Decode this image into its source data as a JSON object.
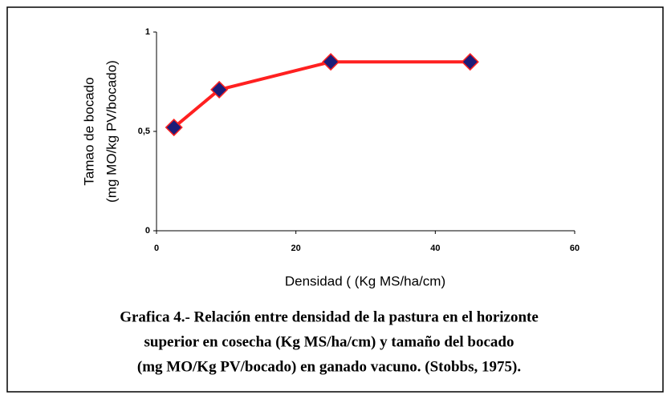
{
  "chart_data": {
    "type": "line",
    "xlabel": "Densidad ( (Kg MS/ha/cm)",
    "ylabel": [
      "Tamao de bocado",
      "(mg MO/kg PV/bocado)"
    ],
    "caption": [
      "Grafica 4.- Relación entre densidad de la pastura en el horizonte",
      "superior  en cosecha (Kg MS/ha/cm) y tamaño del bocado",
      "(mg MO/Kg PV/bocado) en ganado vacuno. (Stobbs, 1975)."
    ],
    "x": [
      2.5,
      9,
      25,
      45
    ],
    "series": [
      {
        "color": "#ff2020",
        "marker_color": "#1c1c78",
        "values": [
          0.52,
          0.71,
          0.85,
          0.85
        ]
      }
    ],
    "xlim": [
      0,
      60
    ],
    "xticks": [
      0,
      20,
      40,
      60
    ],
    "ylim": [
      0,
      1
    ],
    "yticks": [
      0,
      {
        "value": 0.5,
        "label": "0,5"
      },
      1
    ],
    "grid": false
  }
}
